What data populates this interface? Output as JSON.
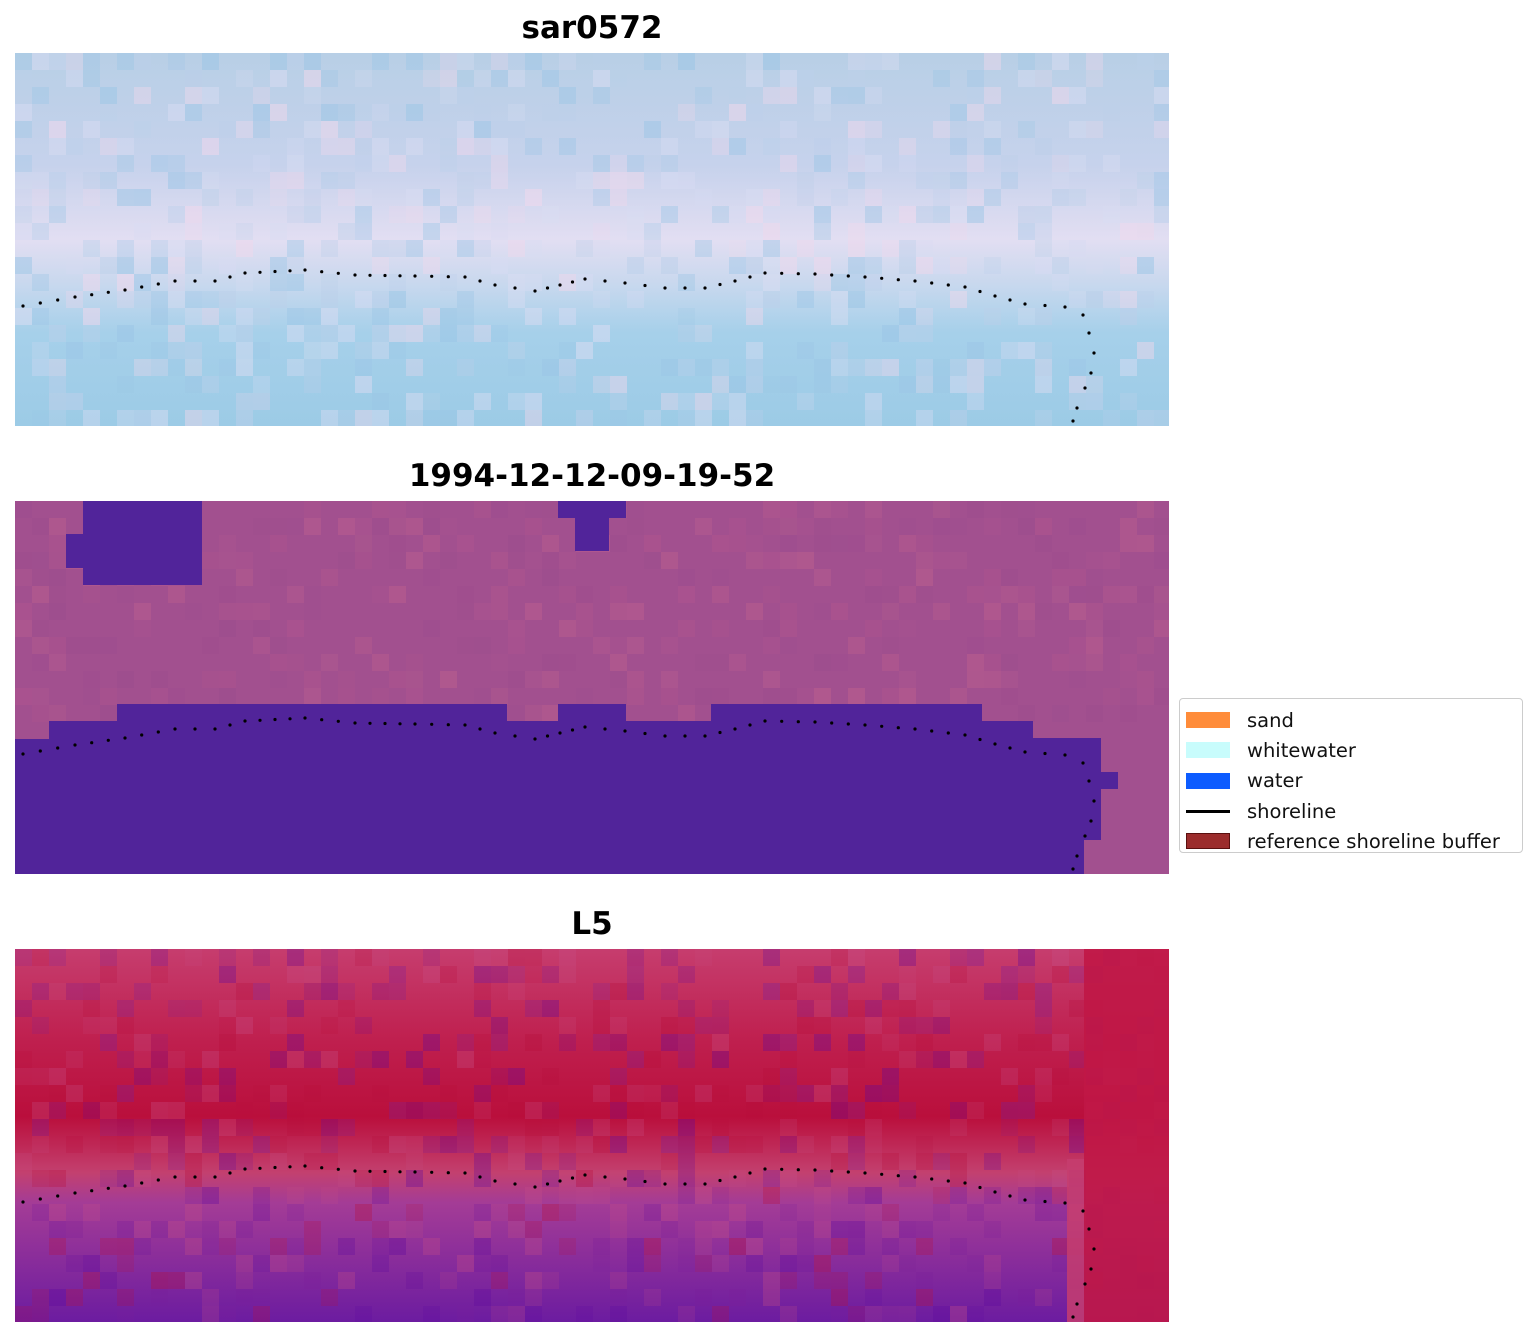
{
  "chart_data": [
    {
      "type": "image",
      "title": "sar0572",
      "overlay": "shoreline",
      "palette": {
        "base": "#a8c8e4",
        "accents": [
          "#bcd0ea",
          "#9cc6e6",
          "#d8dcf2",
          "#f0d8ec"
        ]
      }
    },
    {
      "type": "image",
      "title": "1994-12-12-09-19-52",
      "overlay": "shoreline",
      "palette": {
        "base": "#a2508f",
        "mask": "#51249a",
        "accents": [
          "#b2568e",
          "#9a4c8e",
          "#c0628e"
        ]
      }
    },
    {
      "type": "image",
      "title": "L5",
      "overlay": "shoreline",
      "palette": {
        "base": "#c22656",
        "accents": [
          "#b80f3c",
          "#c64f86",
          "#7a1f9c",
          "#5e0a9e"
        ]
      }
    }
  ],
  "legend": {
    "placement": "right",
    "entries": [
      {
        "label": "sand",
        "color": "#ff8c3a",
        "kind": "patch"
      },
      {
        "label": "whitewater",
        "color": "#c8fcfc",
        "kind": "patch"
      },
      {
        "label": "water",
        "color": "#0d5cff",
        "kind": "patch"
      },
      {
        "label": "shoreline",
        "color": "#000000",
        "kind": "line"
      },
      {
        "label": "reference shoreline buffer",
        "color": "#9b2c2c",
        "kind": "patch",
        "edge": "#5a1010"
      }
    ]
  }
}
